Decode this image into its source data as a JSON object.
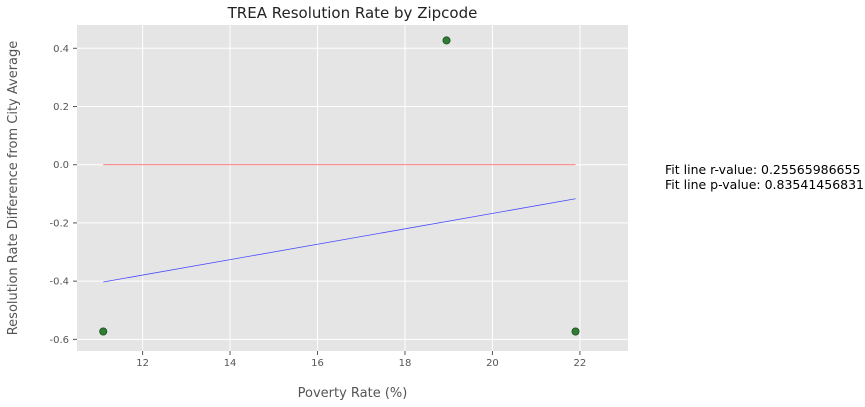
{
  "chart_data": {
    "type": "scatter",
    "title": "TREA Resolution Rate by Zipcode",
    "xlabel": "Poverty Rate (%)",
    "ylabel": "Resolution Rate Difference from City Average",
    "xlim": [
      10.5,
      23.1
    ],
    "ylim": [
      -0.64,
      0.48
    ],
    "x_ticks": [
      12,
      14,
      16,
      18,
      20,
      22
    ],
    "y_ticks": [
      -0.6,
      -0.4,
      -0.2,
      0.0,
      0.2,
      0.4
    ],
    "grid": true,
    "points": [
      {
        "x": 11.1,
        "y": -0.573
      },
      {
        "x": 18.95,
        "y": 0.427
      },
      {
        "x": 21.9,
        "y": -0.573
      }
    ],
    "point_color": "#2e7d32",
    "zero_line": {
      "x": [
        11.1,
        21.9
      ],
      "y": [
        0.0,
        0.0
      ],
      "color": "#ff5555"
    },
    "fit_line": {
      "x": [
        11.1,
        21.9
      ],
      "y": [
        -0.403,
        -0.117
      ],
      "color": "#4a4aff"
    },
    "annotations": [
      "Fit line r-value: 0.25565986655",
      "Fit line p-value: 0.83541456831"
    ]
  }
}
